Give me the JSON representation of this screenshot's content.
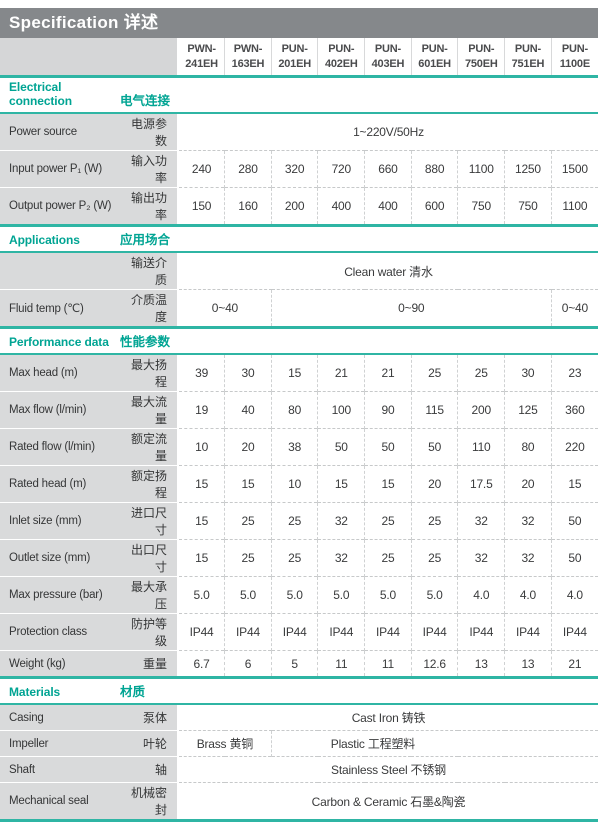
{
  "title": "Specification 详述",
  "colors": {
    "accent_text": "#00a493",
    "accent_line": "#2fb5a4",
    "title_bar_bg": "#85888b",
    "label_column_bg": "#d9dadb"
  },
  "models": [
    "PWN-241EH",
    "PWN-163EH",
    "PUN-201EH",
    "PUN-402EH",
    "PUN-403EH",
    "PUN-601EH",
    "PUN-750EH",
    "PUN-751EH",
    "PUN-1100E"
  ],
  "sections": [
    {
      "key": "electrical-connection",
      "en": "Electrical connection",
      "zh": "电气连接",
      "rows": [
        {
          "key": "power-source",
          "en": "Power source",
          "zh": "电源参数",
          "spans": [
            {
              "text": "1~220V/50Hz",
              "cols": 9
            }
          ]
        },
        {
          "key": "input-power",
          "en": "Input power P₁ (W)",
          "zh": "输入功率",
          "values": [
            "240",
            "280",
            "320",
            "720",
            "660",
            "880",
            "1100",
            "1250",
            "1500"
          ]
        },
        {
          "key": "output-power",
          "en": "Output power P₂ (W)",
          "zh": "输出功率",
          "values": [
            "150",
            "160",
            "200",
            "400",
            "400",
            "600",
            "750",
            "750",
            "1100"
          ]
        }
      ]
    },
    {
      "key": "applications",
      "en": "Applications",
      "zh": "应用场合",
      "rows": [
        {
          "key": "pumped-medium",
          "en": "",
          "zh": "输送介质",
          "spans": [
            {
              "text": "Clean water 清水",
              "cols": 9
            }
          ]
        },
        {
          "key": "fluid-temp",
          "en": "Fluid temp (℃)",
          "zh": "介质温度",
          "spans": [
            {
              "text": "0~40",
              "cols": 2
            },
            {
              "text": "0~90",
              "cols": 6
            },
            {
              "text": "0~40",
              "cols": 1
            }
          ]
        }
      ]
    },
    {
      "key": "performance-data",
      "en": "Performance data",
      "zh": "性能参数",
      "rows": [
        {
          "key": "max-head",
          "en": "Max head (m)",
          "zh": "最大扬程",
          "values": [
            "39",
            "30",
            "15",
            "21",
            "21",
            "25",
            "25",
            "30",
            "23"
          ]
        },
        {
          "key": "max-flow",
          "en": "Max flow (l/min)",
          "zh": "最大流量",
          "values": [
            "19",
            "40",
            "80",
            "100",
            "90",
            "115",
            "200",
            "125",
            "360"
          ]
        },
        {
          "key": "rated-flow",
          "en": "Rated flow (l/min)",
          "zh": "额定流量",
          "values": [
            "10",
            "20",
            "38",
            "50",
            "50",
            "50",
            "110",
            "80",
            "220"
          ]
        },
        {
          "key": "rated-head",
          "en": "Rated head (m)",
          "zh": "额定扬程",
          "values": [
            "15",
            "15",
            "10",
            "15",
            "15",
            "20",
            "17.5",
            "20",
            "15"
          ]
        },
        {
          "key": "inlet-size",
          "en": "Inlet size (mm)",
          "zh": "进口尺寸",
          "values": [
            "15",
            "25",
            "25",
            "32",
            "25",
            "25",
            "32",
            "32",
            "50"
          ]
        },
        {
          "key": "outlet-size",
          "en": "Outlet size (mm)",
          "zh": "出口尺寸",
          "values": [
            "15",
            "25",
            "25",
            "32",
            "25",
            "25",
            "32",
            "32",
            "50"
          ]
        },
        {
          "key": "max-pressure",
          "en": "Max pressure (bar)",
          "zh": "最大承压",
          "values": [
            "5.0",
            "5.0",
            "5.0",
            "5.0",
            "5.0",
            "5.0",
            "4.0",
            "4.0",
            "4.0"
          ]
        },
        {
          "key": "protection-class",
          "en": "Protection class",
          "zh": "防护等级",
          "values": [
            "IP44",
            "IP44",
            "IP44",
            "IP44",
            "IP44",
            "IP44",
            "IP44",
            "IP44",
            "IP44"
          ]
        },
        {
          "key": "weight",
          "en": "Weight (kg)",
          "zh": "重量",
          "values": [
            "6.7",
            "6",
            "5",
            "11",
            "11",
            "12.6",
            "13",
            "13",
            "21"
          ]
        }
      ]
    },
    {
      "key": "materials",
      "en": "Materials",
      "zh": "材质",
      "rows": [
        {
          "key": "casing",
          "en": "Casing",
          "zh": "泵体",
          "spans": [
            {
              "text": "Cast Iron 铸铁",
              "cols": 9
            }
          ]
        },
        {
          "key": "impeller",
          "en": "Impeller",
          "zh": "叶轮",
          "spans": [
            {
              "text": "Brass 黄铜",
              "cols": 2
            },
            {
              "text": "Plastic 工程塑料",
              "cols": 7
            }
          ]
        },
        {
          "key": "shaft",
          "en": "Shaft",
          "zh": "轴",
          "spans": [
            {
              "text": "Stainless Steel 不锈钢",
              "cols": 9
            }
          ]
        },
        {
          "key": "mechanical-seal",
          "en": "Mechanical seal",
          "zh": "机械密封",
          "spans": [
            {
              "text": "Carbon & Ceramic 石墨&陶瓷",
              "cols": 9
            }
          ]
        }
      ]
    }
  ]
}
